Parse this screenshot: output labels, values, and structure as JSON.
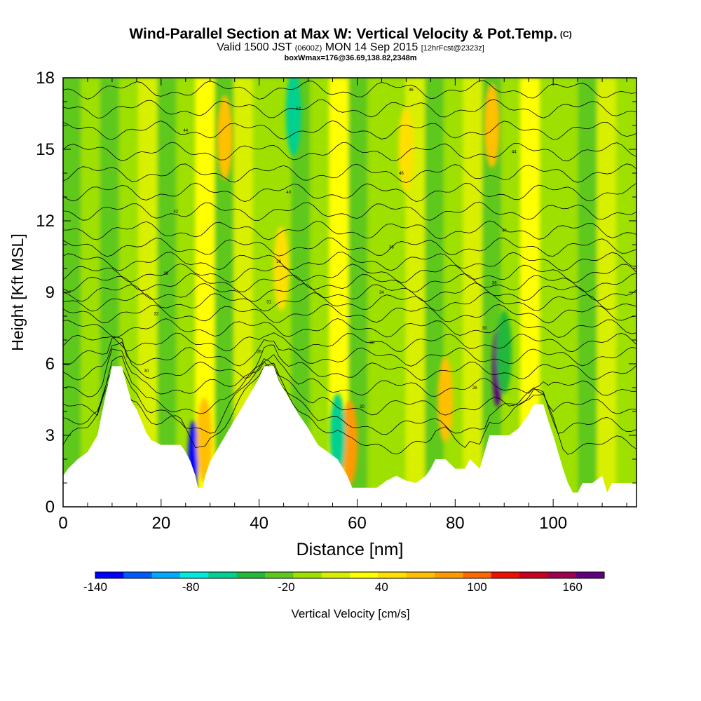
{
  "title": {
    "main": "Wind-Parallel Section at Max W: Vertical Velocity & Pot.Temp.",
    "copyright": "(C)",
    "valid_prefix": "Valid 1500 JST",
    "valid_utc": "(0600Z)",
    "valid_date": "MON 14 Sep 2015",
    "forecast": "[12hrFcst@2323z]",
    "boxmax": "boxWmax=176@36.69,138.82,2348m"
  },
  "chart_data": {
    "type": "heatmap",
    "xlabel": "Distance [nm]",
    "ylabel": "Height [Kft MSL]",
    "xlim": [
      0,
      117
    ],
    "ylim": [
      0,
      18
    ],
    "x_ticks": [
      0,
      20,
      40,
      60,
      80,
      100
    ],
    "y_ticks": [
      0,
      3,
      6,
      9,
      12,
      15,
      18
    ],
    "colorbar": {
      "label": "Vertical Velocity [cm/s]",
      "range": [
        -140,
        180
      ],
      "tick_values": [
        -140,
        -80,
        -20,
        40,
        100,
        160
      ],
      "colors": [
        "#0000ff",
        "#005bff",
        "#00aaff",
        "#00eadd",
        "#00d090",
        "#22b83a",
        "#5ec81e",
        "#9ee000",
        "#d8f000",
        "#ffff00",
        "#ffe000",
        "#ffc000",
        "#ff9a00",
        "#ff6a00",
        "#f01000",
        "#c80020",
        "#a00050",
        "#600080"
      ]
    },
    "terrain_profile": [
      [
        0,
        1.3
      ],
      [
        1,
        1.6
      ],
      [
        3,
        2
      ],
      [
        5,
        2.3
      ],
      [
        7,
        3
      ],
      [
        8,
        4
      ],
      [
        9,
        5
      ],
      [
        10,
        5.9
      ],
      [
        12,
        5.9
      ],
      [
        13,
        5.1
      ],
      [
        14,
        4.4
      ],
      [
        15,
        4.1
      ],
      [
        16,
        3.6
      ],
      [
        17,
        3.1
      ],
      [
        18,
        2.8
      ],
      [
        20,
        2.6
      ],
      [
        22,
        2.6
      ],
      [
        24,
        2.6
      ],
      [
        25,
        2.3
      ],
      [
        26,
        1.9
      ],
      [
        27,
        1.3
      ],
      [
        27.5,
        0.8
      ],
      [
        28.5,
        0.8
      ],
      [
        29,
        1.3
      ],
      [
        30,
        1.9
      ],
      [
        32,
        2.6
      ],
      [
        34,
        3.3
      ],
      [
        36,
        4
      ],
      [
        38,
        4.7
      ],
      [
        40,
        5.4
      ],
      [
        41,
        5.9
      ],
      [
        43,
        5.9
      ],
      [
        44,
        5.3
      ],
      [
        46,
        4.6
      ],
      [
        48,
        3.9
      ],
      [
        50,
        3.3
      ],
      [
        52,
        2.6
      ],
      [
        54,
        2.3
      ],
      [
        56,
        2
      ],
      [
        58,
        1.3
      ],
      [
        59,
        0.8
      ],
      [
        62,
        0.8
      ],
      [
        64,
        0.8
      ],
      [
        66,
        1.1
      ],
      [
        68,
        1.3
      ],
      [
        70,
        1.1
      ],
      [
        72,
        1
      ],
      [
        74,
        1.3
      ],
      [
        75,
        1.6
      ],
      [
        76,
        2
      ],
      [
        78,
        2
      ],
      [
        80,
        1.6
      ],
      [
        82,
        1.6
      ],
      [
        83,
        2
      ],
      [
        85,
        1.6
      ],
      [
        86,
        2.3
      ],
      [
        87,
        3
      ],
      [
        89,
        3
      ],
      [
        91,
        3
      ],
      [
        93,
        3.3
      ],
      [
        95,
        3.9
      ],
      [
        96,
        4.3
      ],
      [
        98,
        4.3
      ],
      [
        99,
        3.6
      ],
      [
        100,
        3
      ],
      [
        101,
        2.3
      ],
      [
        102,
        1.6
      ],
      [
        103,
        1
      ],
      [
        104,
        0.6
      ],
      [
        105,
        0.6
      ],
      [
        106,
        1
      ],
      [
        108,
        1
      ],
      [
        110,
        1.3
      ],
      [
        111,
        0.6
      ],
      [
        112,
        1
      ],
      [
        114,
        1
      ],
      [
        117,
        1
      ]
    ],
    "w_features": [
      {
        "x": 26.5,
        "y": 2.0,
        "value": -140
      },
      {
        "x": 28.8,
        "y": 2.8,
        "value": 60
      },
      {
        "x": 33.0,
        "y": 15.5,
        "value": 60
      },
      {
        "x": 44.5,
        "y": 10.0,
        "value": 40
      },
      {
        "x": 58.5,
        "y": 2.7,
        "value": 80
      },
      {
        "x": 56.0,
        "y": 3.0,
        "value": -60
      },
      {
        "x": 78.0,
        "y": 4.5,
        "value": 60
      },
      {
        "x": 87.5,
        "y": 16.0,
        "value": 70
      },
      {
        "x": 88.6,
        "y": 5.8,
        "value": 176
      },
      {
        "x": 90.0,
        "y": 6.5,
        "value": -40
      },
      {
        "x": 70.0,
        "y": 15.0,
        "value": 40
      },
      {
        "x": 47.0,
        "y": 16.5,
        "value": -60
      }
    ],
    "theta_contours": [
      {
        "base": 2.6,
        "label": ""
      },
      {
        "base": 3.4,
        "label": ""
      },
      {
        "base": 4.2,
        "label": "20"
      },
      {
        "base": 5.0,
        "label": "26"
      },
      {
        "base": 5.7,
        "label": "30"
      },
      {
        "base": 6.3,
        "label": "26"
      },
      {
        "base": 6.9,
        "label": "28"
      },
      {
        "base": 7.5,
        "label": "30"
      },
      {
        "base": 8.1,
        "label": "32"
      },
      {
        "base": 8.6,
        "label": "31"
      },
      {
        "base": 9.0,
        "label": "34"
      },
      {
        "base": 9.4,
        "label": "36"
      },
      {
        "base": 9.8,
        "label": "38"
      },
      {
        "base": 10.3,
        "label": "36"
      },
      {
        "base": 10.9,
        "label": "38"
      },
      {
        "base": 11.6,
        "label": "40"
      },
      {
        "base": 12.4,
        "label": "42"
      },
      {
        "base": 13.2,
        "label": "40"
      },
      {
        "base": 14.0,
        "label": "46"
      },
      {
        "base": 14.9,
        "label": "44"
      },
      {
        "base": 15.8,
        "label": "44"
      },
      {
        "base": 16.7,
        "label": "52"
      },
      {
        "base": 17.5,
        "label": "46"
      }
    ]
  }
}
